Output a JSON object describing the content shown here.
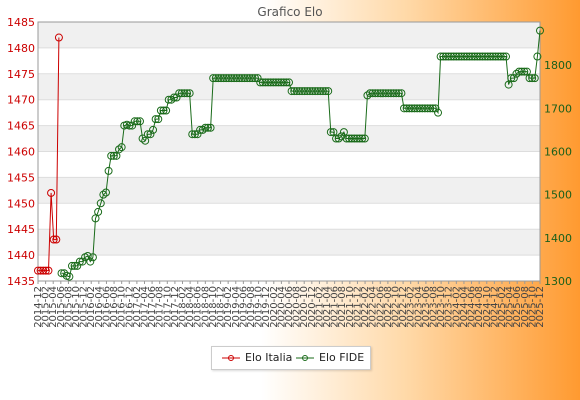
{
  "chart_data": {
    "type": "line",
    "title": "Grafico Elo",
    "y_left": {
      "min": 1435,
      "max": 1485,
      "ticks": [
        1435,
        1440,
        1445,
        1450,
        1455,
        1460,
        1465,
        1470,
        1475,
        1480,
        1485
      ]
    },
    "y_right": {
      "min": 1300,
      "max": 1900,
      "ticks": [
        1300,
        1400,
        1500,
        1600,
        1700,
        1800
      ]
    },
    "grid": true,
    "legend_position": "bottom-center",
    "x_tick_labels": [
      "2014-12",
      "2015-02",
      "2015-04",
      "2015-06",
      "2015-08",
      "2015-10",
      "2015-12",
      "2016-02",
      "2016-04",
      "2016-06",
      "2016-08",
      "2016-10",
      "2016-12",
      "2017-02",
      "2017-04",
      "2017-06",
      "2017-08",
      "2017-10",
      "2017-12",
      "2018-02",
      "2018-04",
      "2018-06",
      "2018-08",
      "2018-10",
      "2018-12",
      "2019-02",
      "2019-04",
      "2019-06",
      "2019-08",
      "2019-10",
      "2019-12",
      "2020-02",
      "2020-04",
      "2020-06",
      "2020-08",
      "2020-10",
      "2020-12",
      "2021-02",
      "2021-04",
      "2021-06",
      "2021-08",
      "2021-10",
      "2021-12",
      "2022-02",
      "2022-04",
      "2022-06",
      "2022-08",
      "2022-10",
      "2022-12",
      "2023-02",
      "2023-04",
      "2023-06",
      "2023-08",
      "2023-10",
      "2023-12",
      "2024-02",
      "2024-04",
      "2024-06",
      "2024-08",
      "2024-10",
      "2024-12",
      "2025-02",
      "2025-04",
      "2025-06",
      "2025-08",
      "2025-10",
      "2025-12"
    ],
    "series": [
      {
        "name": "Elo Italia",
        "axis": "left",
        "color": "#cc0000",
        "points": [
          [
            0,
            1437
          ],
          [
            1,
            1437
          ],
          [
            2,
            1437
          ],
          [
            3,
            1437
          ],
          [
            4,
            1437
          ],
          [
            5,
            1452
          ],
          [
            6,
            1443
          ],
          [
            7,
            1443
          ],
          [
            8,
            1482
          ]
        ]
      },
      {
        "name": "Elo FIDE",
        "axis": "right",
        "color": "#1a6b1a",
        "points": [
          [
            9,
            1318
          ],
          [
            10,
            1318
          ],
          [
            11,
            1312
          ],
          [
            12,
            1310
          ],
          [
            13,
            1335
          ],
          [
            14,
            1335
          ],
          [
            15,
            1335
          ],
          [
            16,
            1345
          ],
          [
            17,
            1345
          ],
          [
            18,
            1355
          ],
          [
            19,
            1358
          ],
          [
            20,
            1345
          ],
          [
            21,
            1355
          ],
          [
            22,
            1445
          ],
          [
            23,
            1460
          ],
          [
            24,
            1480
          ],
          [
            25,
            1500
          ],
          [
            26,
            1505
          ],
          [
            27,
            1555
          ],
          [
            28,
            1590
          ],
          [
            29,
            1590
          ],
          [
            30,
            1590
          ],
          [
            31,
            1605
          ],
          [
            32,
            1610
          ],
          [
            33,
            1660
          ],
          [
            34,
            1662
          ],
          [
            35,
            1660
          ],
          [
            36,
            1660
          ],
          [
            37,
            1670
          ],
          [
            38,
            1670
          ],
          [
            39,
            1670
          ],
          [
            40,
            1630
          ],
          [
            41,
            1625
          ],
          [
            42,
            1640
          ],
          [
            43,
            1640
          ],
          [
            44,
            1650
          ],
          [
            45,
            1675
          ],
          [
            46,
            1675
          ],
          [
            47,
            1695
          ],
          [
            48,
            1695
          ],
          [
            49,
            1695
          ],
          [
            50,
            1720
          ],
          [
            51,
            1720
          ],
          [
            52,
            1725
          ],
          [
            53,
            1725
          ],
          [
            54,
            1735
          ],
          [
            55,
            1735
          ],
          [
            56,
            1735
          ],
          [
            57,
            1735
          ],
          [
            58,
            1735
          ],
          [
            59,
            1640
          ],
          [
            60,
            1640
          ],
          [
            61,
            1640
          ],
          [
            62,
            1650
          ],
          [
            63,
            1650
          ],
          [
            64,
            1655
          ],
          [
            65,
            1655
          ],
          [
            66,
            1655
          ],
          [
            67,
            1770
          ],
          [
            68,
            1770
          ],
          [
            69,
            1770
          ],
          [
            70,
            1770
          ],
          [
            71,
            1770
          ],
          [
            72,
            1770
          ],
          [
            73,
            1770
          ],
          [
            74,
            1770
          ],
          [
            75,
            1770
          ],
          [
            76,
            1770
          ],
          [
            77,
            1770
          ],
          [
            78,
            1770
          ],
          [
            79,
            1770
          ],
          [
            80,
            1770
          ],
          [
            81,
            1770
          ],
          [
            82,
            1770
          ],
          [
            83,
            1770
          ],
          [
            84,
            1770
          ],
          [
            85,
            1760
          ],
          [
            86,
            1760
          ],
          [
            87,
            1760
          ],
          [
            88,
            1760
          ],
          [
            89,
            1760
          ],
          [
            90,
            1760
          ],
          [
            91,
            1760
          ],
          [
            92,
            1760
          ],
          [
            93,
            1760
          ],
          [
            94,
            1760
          ],
          [
            95,
            1760
          ],
          [
            96,
            1760
          ],
          [
            97,
            1740
          ],
          [
            98,
            1740
          ],
          [
            99,
            1740
          ],
          [
            100,
            1740
          ],
          [
            101,
            1740
          ],
          [
            102,
            1740
          ],
          [
            103,
            1740
          ],
          [
            104,
            1740
          ],
          [
            105,
            1740
          ],
          [
            106,
            1740
          ],
          [
            107,
            1740
          ],
          [
            108,
            1740
          ],
          [
            109,
            1740
          ],
          [
            110,
            1740
          ],
          [
            111,
            1740
          ],
          [
            112,
            1645
          ],
          [
            113,
            1645
          ],
          [
            114,
            1630
          ],
          [
            115,
            1630
          ],
          [
            116,
            1635
          ],
          [
            117,
            1645
          ],
          [
            118,
            1630
          ],
          [
            119,
            1630
          ],
          [
            120,
            1630
          ],
          [
            121,
            1630
          ],
          [
            122,
            1630
          ],
          [
            123,
            1630
          ],
          [
            124,
            1630
          ],
          [
            125,
            1630
          ],
          [
            126,
            1730
          ],
          [
            127,
            1735
          ],
          [
            128,
            1735
          ],
          [
            129,
            1735
          ],
          [
            130,
            1735
          ],
          [
            131,
            1735
          ],
          [
            132,
            1735
          ],
          [
            133,
            1735
          ],
          [
            134,
            1735
          ],
          [
            135,
            1735
          ],
          [
            136,
            1735
          ],
          [
            137,
            1735
          ],
          [
            138,
            1735
          ],
          [
            139,
            1735
          ],
          [
            140,
            1700
          ],
          [
            141,
            1700
          ],
          [
            142,
            1700
          ],
          [
            143,
            1700
          ],
          [
            144,
            1700
          ],
          [
            145,
            1700
          ],
          [
            146,
            1700
          ],
          [
            147,
            1700
          ],
          [
            148,
            1700
          ],
          [
            149,
            1700
          ],
          [
            150,
            1700
          ],
          [
            151,
            1700
          ],
          [
            152,
            1700
          ],
          [
            153,
            1690
          ],
          [
            154,
            1820
          ],
          [
            155,
            1820
          ],
          [
            156,
            1820
          ],
          [
            157,
            1820
          ],
          [
            158,
            1820
          ],
          [
            159,
            1820
          ],
          [
            160,
            1820
          ],
          [
            161,
            1820
          ],
          [
            162,
            1820
          ],
          [
            163,
            1820
          ],
          [
            164,
            1820
          ],
          [
            165,
            1820
          ],
          [
            166,
            1820
          ],
          [
            167,
            1820
          ],
          [
            168,
            1820
          ],
          [
            169,
            1820
          ],
          [
            170,
            1820
          ],
          [
            171,
            1820
          ],
          [
            172,
            1820
          ],
          [
            173,
            1820
          ],
          [
            174,
            1820
          ],
          [
            175,
            1820
          ],
          [
            176,
            1820
          ],
          [
            177,
            1820
          ],
          [
            178,
            1820
          ],
          [
            179,
            1820
          ],
          [
            180,
            1755
          ],
          [
            181,
            1770
          ],
          [
            182,
            1770
          ],
          [
            183,
            1780
          ],
          [
            184,
            1785
          ],
          [
            185,
            1785
          ],
          [
            186,
            1785
          ],
          [
            187,
            1785
          ],
          [
            188,
            1770
          ],
          [
            189,
            1770
          ],
          [
            190,
            1770
          ],
          [
            191,
            1820
          ],
          [
            192,
            1880
          ]
        ]
      }
    ]
  }
}
